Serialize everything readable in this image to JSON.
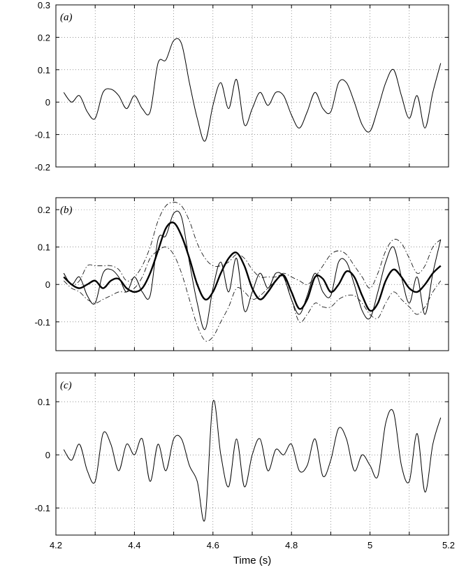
{
  "chart_data": [
    {
      "type": "line",
      "title": "(a)",
      "x": [
        4.22,
        4.24,
        4.26,
        4.28,
        4.3,
        4.32,
        4.34,
        4.36,
        4.38,
        4.4,
        4.42,
        4.44,
        4.46,
        4.48,
        4.5,
        4.52,
        4.54,
        4.56,
        4.58,
        4.6,
        4.62,
        4.64,
        4.66,
        4.68,
        4.7,
        4.72,
        4.74,
        4.76,
        4.78,
        4.8,
        4.82,
        4.84,
        4.86,
        4.88,
        4.9,
        4.92,
        4.94,
        4.96,
        4.98,
        5.0,
        5.02,
        5.04,
        5.06,
        5.08,
        5.1,
        5.12,
        5.14,
        5.16,
        5.18
      ],
      "series": [
        {
          "color": "#000000",
          "width": 1,
          "values": [
            0.03,
            0.0,
            0.02,
            -0.03,
            -0.05,
            0.03,
            0.04,
            0.02,
            -0.02,
            0.02,
            -0.02,
            -0.03,
            0.12,
            0.13,
            0.19,
            0.18,
            0.06,
            -0.05,
            -0.12,
            -0.01,
            0.06,
            -0.02,
            0.07,
            -0.07,
            -0.02,
            0.03,
            -0.01,
            0.03,
            0.02,
            -0.04,
            -0.08,
            -0.03,
            0.03,
            -0.02,
            -0.03,
            0.06,
            0.06,
            0.0,
            -0.07,
            -0.09,
            -0.02,
            0.06,
            0.1,
            0.02,
            -0.05,
            0.02,
            -0.08,
            0.03,
            0.12
          ]
        }
      ],
      "xlim": [
        4.2,
        5.2
      ],
      "ylim": [
        -0.2,
        0.3
      ],
      "yticks": [
        -0.2,
        -0.1,
        0,
        0.1,
        0.2,
        0.3
      ],
      "grid": true
    },
    {
      "type": "line",
      "title": "(b)",
      "x": [
        4.22,
        4.24,
        4.26,
        4.28,
        4.3,
        4.32,
        4.34,
        4.36,
        4.38,
        4.4,
        4.42,
        4.44,
        4.46,
        4.48,
        4.5,
        4.52,
        4.54,
        4.56,
        4.58,
        4.6,
        4.62,
        4.64,
        4.66,
        4.68,
        4.7,
        4.72,
        4.74,
        4.76,
        4.78,
        4.8,
        4.82,
        4.84,
        4.86,
        4.88,
        4.9,
        4.92,
        4.94,
        4.96,
        4.98,
        5.0,
        5.02,
        5.04,
        5.06,
        5.08,
        5.1,
        5.12,
        5.14,
        5.16,
        5.18
      ],
      "series": [
        {
          "color": "#000000",
          "width": 1,
          "values": [
            0.03,
            0.0,
            0.02,
            -0.03,
            -0.05,
            0.03,
            0.04,
            0.02,
            -0.02,
            0.02,
            -0.02,
            -0.03,
            0.12,
            0.13,
            0.19,
            0.18,
            0.06,
            -0.05,
            -0.12,
            -0.01,
            0.06,
            -0.02,
            0.07,
            -0.07,
            -0.02,
            0.03,
            -0.01,
            0.03,
            0.02,
            -0.04,
            -0.08,
            -0.03,
            0.03,
            -0.02,
            -0.03,
            0.06,
            0.06,
            0.0,
            -0.07,
            -0.09,
            -0.02,
            0.06,
            0.1,
            0.02,
            -0.05,
            0.02,
            -0.08,
            0.03,
            0.12
          ]
        },
        {
          "color": "#000000",
          "width": 2.4,
          "values": [
            0.02,
            0.0,
            -0.01,
            0.0,
            0.01,
            -0.01,
            0.01,
            0.015,
            -0.01,
            -0.02,
            -0.01,
            0.03,
            0.09,
            0.15,
            0.165,
            0.13,
            0.07,
            0.0,
            -0.04,
            -0.02,
            0.03,
            0.07,
            0.085,
            0.05,
            -0.01,
            -0.04,
            -0.02,
            0.01,
            0.025,
            -0.02,
            -0.065,
            -0.04,
            0.02,
            0.015,
            -0.02,
            0.0,
            0.035,
            0.02,
            -0.03,
            -0.07,
            -0.05,
            0.01,
            0.04,
            0.02,
            -0.01,
            -0.02,
            0.0,
            0.03,
            0.05
          ]
        },
        {
          "color": "#000000",
          "width": 0.8,
          "style": "dash-dot",
          "values": [
            0.03,
            0.0,
            0.01,
            0.05,
            0.05,
            0.05,
            0.05,
            0.04,
            0.01,
            0.02,
            0.05,
            0.1,
            0.17,
            0.21,
            0.22,
            0.21,
            0.17,
            0.11,
            0.07,
            0.05,
            0.05,
            0.06,
            0.08,
            0.07,
            0.04,
            0.02,
            0.02,
            0.02,
            0.03,
            0.02,
            0.01,
            0.0,
            0.02,
            0.05,
            0.08,
            0.09,
            0.08,
            0.05,
            0.02,
            -0.01,
            0.03,
            0.09,
            0.12,
            0.11,
            0.07,
            0.03,
            0.05,
            0.1,
            0.12
          ]
        },
        {
          "color": "#000000",
          "width": 0.8,
          "style": "dash-dot",
          "values": [
            0.01,
            -0.01,
            -0.02,
            -0.04,
            -0.05,
            -0.04,
            -0.03,
            -0.02,
            -0.02,
            -0.01,
            0.02,
            0.07,
            0.09,
            0.1,
            0.08,
            0.03,
            -0.04,
            -0.11,
            -0.15,
            -0.14,
            -0.1,
            -0.06,
            -0.01,
            -0.02,
            -0.04,
            -0.03,
            -0.01,
            0.01,
            0.02,
            -0.04,
            -0.1,
            -0.08,
            -0.05,
            -0.06,
            -0.06,
            -0.04,
            -0.03,
            -0.03,
            -0.05,
            -0.08,
            -0.09,
            -0.05,
            -0.02,
            -0.04,
            -0.06,
            -0.08,
            -0.06,
            -0.02,
            0.01
          ]
        }
      ],
      "xlim": [
        4.2,
        5.2
      ],
      "ylim": [
        -0.177,
        0.232
      ],
      "yticks": [
        -0.1,
        0,
        0.1,
        0.2
      ],
      "grid": true
    },
    {
      "type": "line",
      "title": "(c)",
      "xlabel": "Time (s)",
      "x": [
        4.22,
        4.24,
        4.26,
        4.28,
        4.3,
        4.32,
        4.34,
        4.36,
        4.38,
        4.4,
        4.42,
        4.44,
        4.46,
        4.48,
        4.5,
        4.52,
        4.54,
        4.56,
        4.58,
        4.6,
        4.62,
        4.64,
        4.66,
        4.68,
        4.7,
        4.72,
        4.74,
        4.76,
        4.78,
        4.8,
        4.82,
        4.84,
        4.86,
        4.88,
        4.9,
        4.92,
        4.94,
        4.96,
        4.98,
        5.0,
        5.02,
        5.04,
        5.06,
        5.08,
        5.1,
        5.12,
        5.14,
        5.16,
        5.18
      ],
      "series": [
        {
          "color": "#000000",
          "width": 1,
          "values": [
            0.01,
            -0.01,
            0.02,
            -0.03,
            -0.05,
            0.04,
            0.02,
            -0.03,
            0.02,
            0.0,
            0.03,
            -0.05,
            0.02,
            -0.03,
            0.03,
            0.03,
            -0.02,
            -0.05,
            -0.12,
            0.1,
            0.0,
            -0.06,
            0.03,
            -0.06,
            0.0,
            0.03,
            -0.03,
            0.01,
            0.0,
            0.02,
            -0.03,
            -0.02,
            0.03,
            -0.04,
            -0.01,
            0.05,
            0.03,
            -0.03,
            0.0,
            -0.02,
            -0.04,
            0.06,
            0.08,
            -0.02,
            -0.05,
            0.04,
            -0.07,
            0.02,
            0.07
          ]
        }
      ],
      "xlim": [
        4.2,
        5.2
      ],
      "ylim": [
        -0.151,
        0.154
      ],
      "yticks": [
        -0.1,
        0,
        0.1
      ],
      "xticks": [
        4.2,
        4.4,
        4.6,
        4.8,
        5,
        5.2
      ],
      "xminor": [
        4.3,
        4.5,
        4.7,
        4.9,
        5.1
      ],
      "grid": true
    }
  ]
}
